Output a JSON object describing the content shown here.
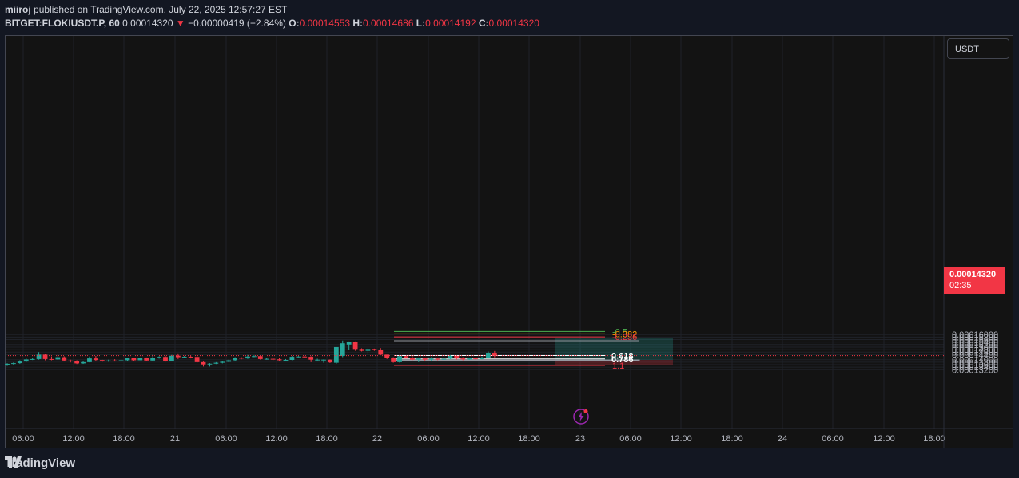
{
  "header": {
    "user": "miiroj",
    "published_text": "published on TradingView.com, July 22, 2025 12:57:27 EST",
    "symbol": "BITGET:FLOKIUSDT.P, 60",
    "last": "0.00014320",
    "change": "−0.00000419 (−2.84%)",
    "o_label": "O:",
    "o_value": "0.00014553",
    "h_label": "H:",
    "h_value": "0.00014686",
    "l_label": "L:",
    "l_value": "0.00014192",
    "c_label": "C:",
    "c_value": "0.00014320"
  },
  "currency_button": "USDT",
  "price_tag": {
    "value": "0.00014320",
    "countdown": "02:35"
  },
  "footer": {
    "brand": "TradingView"
  },
  "colors": {
    "up": "#26a69a",
    "down": "#f23645",
    "background": "#131313"
  },
  "chart_data": {
    "type": "candlestick",
    "symbol": "BITGET:FLOKIUSDT.P",
    "interval": "60",
    "y_axis_labels": [
      "0.00016000",
      "0.00015800",
      "0.00015600",
      "0.00015400",
      "0.00015200",
      "0.00015000",
      "0.00014800",
      "0.00014600",
      "0.00014400",
      "0.00014000",
      "0.00013800",
      "0.00013600",
      "0.00013400",
      "0.00013200"
    ],
    "x_axis_labels": [
      "06:00",
      "12:00",
      "18:00",
      "21",
      "06:00",
      "12:00",
      "18:00",
      "22",
      "06:00",
      "12:00",
      "18:00",
      "23",
      "06:00",
      "12:00",
      "18:00",
      "24",
      "06:00",
      "12:00",
      "18:00"
    ],
    "current_price": 0.0001432,
    "fib_levels": [
      {
        "label": "-0.5",
        "value": 0.00016243,
        "color": "#4caf50"
      },
      {
        "label": "-0.382",
        "value": 0.00016055,
        "color": "#ff9800"
      },
      {
        "label": "-0.236",
        "value": 0.00015815,
        "color": "#f23645"
      },
      {
        "label": "0.618",
        "value": 0.0001433,
        "color": "#ffffff"
      },
      {
        "label": "0.786",
        "value": 0.0001406,
        "color": "#ffffff"
      },
      {
        "label": "1.1",
        "value": 0.0001354,
        "color": "#f23645"
      }
    ],
    "long_position": {
      "entry": 0.0001398,
      "target": 0.0001575,
      "stop": 0.0001355
    },
    "candles": [
      [
        0.0001357,
        0.0001367,
        0.000135,
        0.0001372
      ],
      [
        0.0001367,
        0.0001372,
        0.000136,
        0.0001378
      ],
      [
        0.0001372,
        0.0001385,
        0.0001367,
        0.0001395
      ],
      [
        0.0001385,
        0.0001402,
        0.000138,
        0.000141
      ],
      [
        0.0001402,
        0.0001405,
        0.0001397,
        0.0001415
      ],
      [
        0.0001405,
        0.000144,
        0.00014,
        0.000146
      ],
      [
        0.000144,
        0.0001405,
        0.0001395,
        0.0001445
      ],
      [
        0.0001405,
        0.0001402,
        0.0001395,
        0.0001425
      ],
      [
        0.0001402,
        0.000142,
        0.0001398,
        0.0001437
      ],
      [
        0.000142,
        0.0001393,
        0.0001388,
        0.0001427
      ],
      [
        0.0001393,
        0.0001388,
        0.0001378,
        0.00014
      ],
      [
        0.0001388,
        0.000137,
        0.0001365,
        0.0001395
      ],
      [
        0.000137,
        0.000138,
        0.0001366,
        0.000139
      ],
      [
        0.000138,
        0.000141,
        0.0001378,
        0.0001425
      ],
      [
        0.000141,
        0.0001397,
        0.000139,
        0.000143
      ],
      [
        0.0001397,
        0.0001388,
        0.0001382,
        0.00014
      ],
      [
        0.0001388,
        0.0001393,
        0.0001383,
        0.00014
      ],
      [
        0.0001393,
        0.0001387,
        0.0001385,
        0.0001404
      ],
      [
        0.0001387,
        0.0001395,
        0.0001385,
        0.00014
      ],
      [
        0.0001395,
        0.0001413,
        0.000139,
        0.0001417
      ],
      [
        0.0001413,
        0.0001395,
        0.0001389,
        0.0001415
      ],
      [
        0.0001395,
        0.0001415,
        0.0001395,
        0.0001417
      ],
      [
        0.0001415,
        0.0001393,
        0.0001386,
        0.0001418
      ],
      [
        0.0001393,
        0.0001415,
        0.000139,
        0.000144
      ],
      [
        0.0001415,
        0.0001422,
        0.0001408,
        0.0001427
      ],
      [
        0.0001422,
        0.000139,
        0.0001385,
        0.0001428
      ],
      [
        0.000139,
        0.0001432,
        0.0001388,
        0.0001438
      ],
      [
        0.0001432,
        0.000142,
        0.0001405,
        0.000145
      ],
      [
        0.000142,
        0.0001423,
        0.0001413,
        0.000143
      ],
      [
        0.0001423,
        0.0001422,
        0.000141,
        0.0001432
      ],
      [
        0.0001422,
        0.000138,
        0.0001375,
        0.0001428
      ],
      [
        0.000138,
        0.0001362,
        0.0001345,
        0.0001385
      ],
      [
        0.0001362,
        0.0001368,
        0.0001345,
        0.0001372
      ],
      [
        0.0001368,
        0.0001375,
        0.0001365,
        0.000138
      ],
      [
        0.0001375,
        0.0001383,
        0.000137,
        0.0001386
      ],
      [
        0.0001383,
        0.0001395,
        0.000138,
        0.00014
      ],
      [
        0.0001395,
        0.0001415,
        0.0001392,
        0.000142
      ],
      [
        0.0001415,
        0.000141,
        0.0001403,
        0.000142
      ],
      [
        0.000141,
        0.0001425,
        0.0001406,
        0.0001438
      ],
      [
        0.0001425,
        0.0001428,
        0.000142,
        0.0001435
      ],
      [
        0.0001428,
        0.0001405,
        0.00014,
        0.0001435
      ],
      [
        0.0001405,
        0.0001407,
        0.00014,
        0.0001415
      ],
      [
        0.0001407,
        0.0001403,
        0.0001395,
        0.0001415
      ],
      [
        0.0001403,
        0.0001395,
        0.000139,
        0.0001413
      ],
      [
        0.0001395,
        0.0001398,
        0.000139,
        0.0001405
      ],
      [
        0.0001398,
        0.0001423,
        0.0001396,
        0.0001428
      ],
      [
        0.0001423,
        0.0001425,
        0.0001419,
        0.0001429
      ],
      [
        0.0001425,
        0.0001423,
        0.0001413,
        0.000143
      ],
      [
        0.0001423,
        0.00014,
        0.000138,
        0.0001427
      ],
      [
        0.00014,
        0.00014,
        0.0001392,
        0.0001408
      ],
      [
        0.00014,
        0.00014,
        0.0001375,
        0.0001402
      ],
      [
        0.00014,
        0.0001378,
        0.0001373,
        0.0001402
      ],
      [
        0.0001375,
        0.00015,
        0.0001367,
        0.00015
      ],
      [
        0.000143,
        0.000153,
        0.000142,
        0.0001552
      ],
      [
        0.000152,
        0.000154,
        0.0001475,
        0.0001545
      ],
      [
        0.000154,
        0.0001485,
        0.000147,
        0.0001545
      ],
      [
        0.0001485,
        0.000147,
        0.0001465,
        0.000149
      ],
      [
        0.000147,
        0.0001485,
        0.000144,
        0.000149
      ],
      [
        0.0001485,
        0.000148,
        0.000147,
        0.0001488
      ],
      [
        0.000148,
        0.000144,
        0.0001435,
        0.0001492
      ],
      [
        0.000144,
        0.0001415,
        0.0001405,
        0.000144
      ],
      [
        0.0001415,
        0.000138,
        0.0001375,
        0.000142
      ],
      [
        0.000138,
        0.0001428,
        0.0001375,
        0.0001432
      ],
      [
        0.0001428,
        0.0001415,
        0.0001408,
        0.000143
      ],
      [
        0.0001415,
        0.00014,
        0.0001395,
        0.000143
      ],
      [
        0.00014,
        0.000141,
        0.000138,
        0.0001415
      ],
      [
        0.000141,
        0.00014,
        0.000139,
        0.0001415
      ],
      [
        0.00014,
        0.0001408,
        0.000139,
        0.000142
      ],
      [
        0.0001408,
        0.00014,
        0.0001395,
        0.000141
      ],
      [
        0.00014,
        0.0001407,
        0.0001393,
        0.000143
      ],
      [
        0.0001407,
        0.000143,
        0.0001405,
        0.0001437
      ],
      [
        0.000143,
        0.000141,
        0.00014,
        0.0001432
      ],
      [
        0.000141,
        0.0001402,
        0.0001395,
        0.000142
      ],
      [
        0.0001402,
        0.0001412,
        0.0001398,
        0.0001415
      ],
      [
        0.0001412,
        0.0001405,
        0.00014,
        0.0001416
      ],
      [
        0.0001405,
        0.0001412,
        0.0001403,
        0.0001425
      ],
      [
        0.0001412,
        0.0001455,
        0.0001408,
        0.0001465
      ],
      [
        0.0001455,
        0.0001432,
        0.0001419,
        0.0001469
      ]
    ]
  }
}
